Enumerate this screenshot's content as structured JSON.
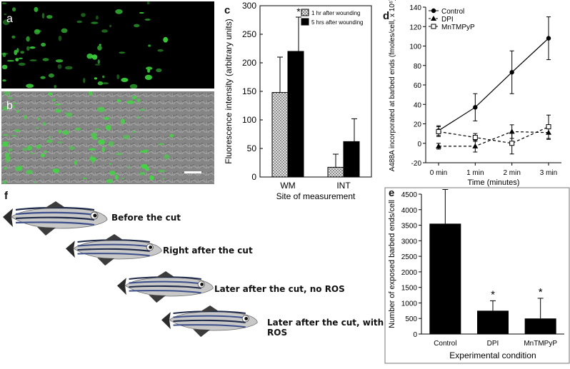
{
  "panel_letters": {
    "a": "a",
    "b": "b",
    "c": "c",
    "d": "d",
    "e": "e",
    "f": "f"
  },
  "fish_labels": [
    "Before the cut",
    "Right after the cut",
    "Later after the cut, no ROS",
    "Later after the cut, with ROS"
  ],
  "colors": {
    "fluorescence": "#3cd23c",
    "bar_dark": "#000000",
    "hatch": "#bdbdbd"
  },
  "chart_data": [
    {
      "id": "c",
      "type": "bar",
      "xlabel": "Site of measurement",
      "ylabel": "Fluorescence intensity (arbitrary units)",
      "categories": [
        "WM",
        "INT"
      ],
      "ylim": [
        0,
        300
      ],
      "yticks": [
        "0",
        "50",
        "100",
        "150",
        "200",
        "250",
        "300"
      ],
      "series": [
        {
          "name": "1 hr after wounding",
          "values": [
            148,
            17
          ],
          "errors": [
            62,
            23
          ]
        },
        {
          "name": "5 hrs after wounding",
          "values": [
            220,
            62
          ],
          "errors": [
            60,
            40
          ]
        }
      ],
      "annotations": [
        {
          "text": "*",
          "category": "WM",
          "series": 1
        }
      ],
      "legend": "top-right"
    },
    {
      "id": "d",
      "type": "line",
      "xlabel": "Time (minutes)",
      "ylabel": "A488A incorporated at barbed ends (fmoles/cell, x 10⁶)",
      "categories": [
        "0 min",
        "1 min",
        "2 min",
        "3 min"
      ],
      "ylim": [
        -20,
        140
      ],
      "yticks": [
        "-20",
        "0",
        "20",
        "40",
        "60",
        "80",
        "100",
        "120",
        "140"
      ],
      "series": [
        {
          "name": "Control",
          "values": [
            13,
            37,
            73,
            108
          ],
          "errors": [
            5,
            14,
            22,
            22
          ],
          "marker": "circle"
        },
        {
          "name": "DPI",
          "values": [
            -3,
            -3,
            12,
            11
          ],
          "errors": [
            3,
            6,
            7,
            7
          ],
          "marker": "triangle"
        },
        {
          "name": "MnTMPyP",
          "values": [
            12,
            6,
            0,
            17
          ],
          "errors": [
            5,
            4,
            11,
            12
          ],
          "marker": "square"
        }
      ],
      "legend": "top-left"
    },
    {
      "id": "e",
      "type": "bar",
      "xlabel": "Experimental condition",
      "ylabel": "Number of exposed barbed ends/cell",
      "categories": [
        "Control",
        "DPI",
        "MnTMPyP"
      ],
      "ylim": [
        0,
        4500
      ],
      "yticks": [
        "0",
        "500",
        "1000",
        "1500",
        "2000",
        "2500",
        "3000",
        "3500",
        "4000",
        "4500"
      ],
      "series": [
        {
          "values": [
            3550,
            750,
            500
          ],
          "errors": [
            1100,
            320,
            650
          ]
        }
      ],
      "annotations": [
        {
          "text": "*",
          "category": "DPI"
        },
        {
          "text": "*",
          "category": "MnTMPyP"
        }
      ]
    }
  ]
}
